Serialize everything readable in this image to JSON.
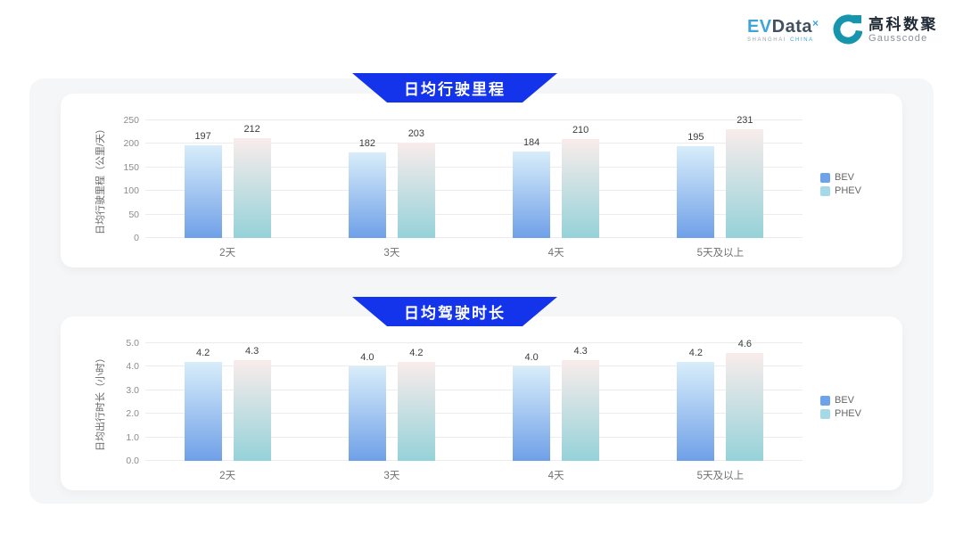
{
  "header": {
    "evdata_logo": {
      "ev": "EV",
      "data": "Data",
      "superscript": "×",
      "sub_left": "SHANGHAI",
      "sub_right": "CHINA"
    },
    "gausscode_logo": {
      "cn": "高科数聚",
      "en": "Gausscode"
    }
  },
  "colors": {
    "banner_blue": "#1434eb",
    "evdata_blue": "#3fa4d9",
    "evdata_dark": "#42505f",
    "gausscode_teal": "#1795ad",
    "page_panel_gray": "#f5f6f7"
  },
  "chart_data": [
    {
      "type": "bar",
      "title": "日均行驶里程",
      "ylabel": "日均行驶里程（公里/天）",
      "categories": [
        "2天",
        "3天",
        "4天",
        "5天及以上"
      ],
      "series": [
        {
          "name": "BEV",
          "values": [
            197,
            182,
            184,
            195
          ],
          "gradient": [
            "#d8edfa",
            "#6fa0e8"
          ],
          "legend_color": "#6da4e9"
        },
        {
          "name": "PHEV",
          "values": [
            212,
            203,
            210,
            231
          ],
          "gradient": [
            "#f9eceb",
            "#95d2d9"
          ],
          "legend_color": "#a5d9e8"
        }
      ],
      "ylim": [
        0,
        250
      ],
      "yticks": [
        "0",
        "50",
        "100",
        "150",
        "200",
        "250"
      ],
      "value_format": "int",
      "grid": true,
      "legend_position": "right"
    },
    {
      "type": "bar",
      "title": "日均驾驶时长",
      "ylabel": "日均出行时长（小时）",
      "categories": [
        "2天",
        "3天",
        "4天",
        "5天及以上"
      ],
      "series": [
        {
          "name": "BEV",
          "values": [
            4.2,
            4.0,
            4.0,
            4.2
          ],
          "gradient": [
            "#d8edfa",
            "#6fa0e8"
          ],
          "legend_color": "#6da4e9"
        },
        {
          "name": "PHEV",
          "values": [
            4.3,
            4.2,
            4.3,
            4.6
          ],
          "gradient": [
            "#f9eceb",
            "#95d2d9"
          ],
          "legend_color": "#a5d9e8"
        }
      ],
      "ylim": [
        0,
        5
      ],
      "yticks": [
        "0.0",
        "1.0",
        "2.0",
        "3.0",
        "4.0",
        "5.0"
      ],
      "value_format": "1dp",
      "grid": true,
      "legend_position": "right"
    }
  ]
}
